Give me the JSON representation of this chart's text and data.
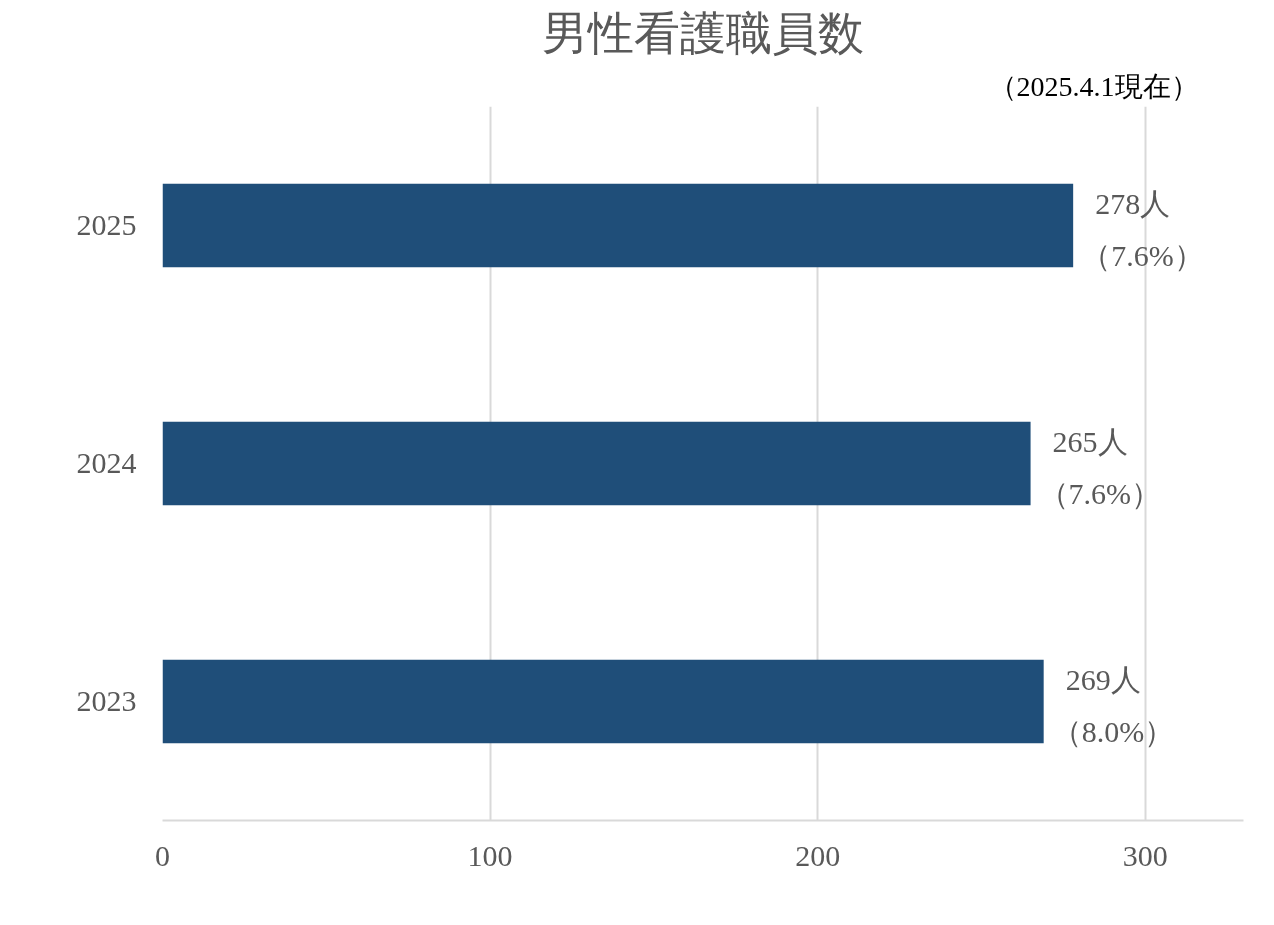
{
  "chart_data": {
    "type": "bar",
    "orientation": "horizontal",
    "title": "男性看護職員数",
    "subtitle": "（2025.4.1現在）",
    "categories": [
      "2025",
      "2024",
      "2023"
    ],
    "values": [
      278,
      265,
      269
    ],
    "value_labels": [
      "278人（7.6%）",
      "265人（7.6%）",
      "269人（8.0%）"
    ],
    "color": "#1f4e79",
    "xlim": [
      0,
      330
    ],
    "xticks": [
      0,
      100,
      200,
      300
    ],
    "grid": "x"
  }
}
